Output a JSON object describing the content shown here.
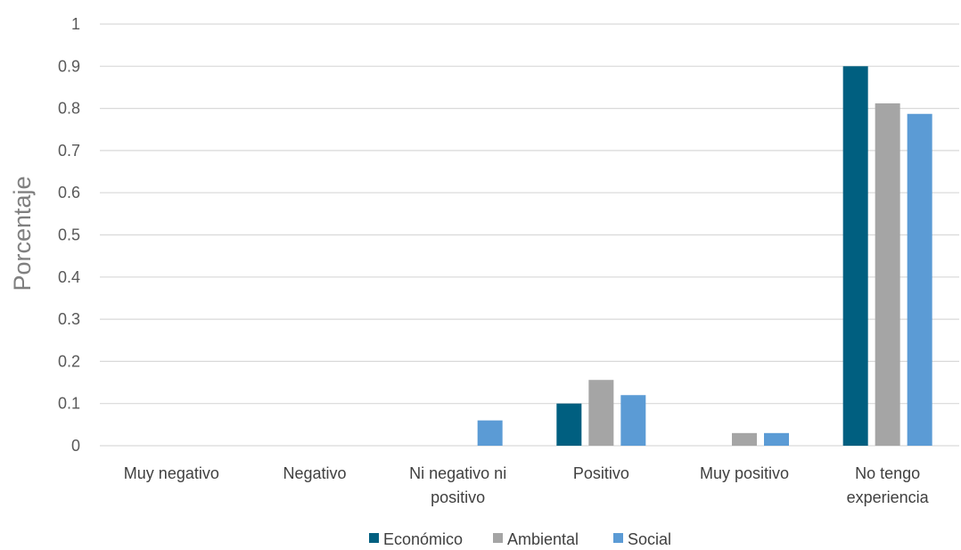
{
  "chart_data": {
    "type": "bar",
    "title": "",
    "xlabel": "",
    "ylabel": "Porcentaje",
    "ylim": [
      0,
      1
    ],
    "yticks": [
      "0",
      "0.1",
      "0.2",
      "0.3",
      "0.4",
      "0.5",
      "0.6",
      "0.7",
      "0.8",
      "0.9",
      "1"
    ],
    "grid": true,
    "legend_position": "bottom",
    "categories": [
      [
        "Muy negativo"
      ],
      [
        "Negativo"
      ],
      [
        "Ni negativo ni",
        "positivo"
      ],
      [
        "Positivo"
      ],
      [
        "Muy positivo"
      ],
      [
        "No tengo",
        "experiencia"
      ]
    ],
    "series": [
      {
        "name": "Económico",
        "color": "#005f80",
        "values": [
          0,
          0,
          0,
          0.1,
          0,
          0.9
        ]
      },
      {
        "name": "Ambiental",
        "color": "#a5a5a5",
        "values": [
          0,
          0,
          0,
          0.156,
          0.03,
          0.812
        ]
      },
      {
        "name": "Social",
        "color": "#5b9bd5",
        "values": [
          0,
          0,
          0.06,
          0.12,
          0.03,
          0.787
        ]
      }
    ]
  }
}
